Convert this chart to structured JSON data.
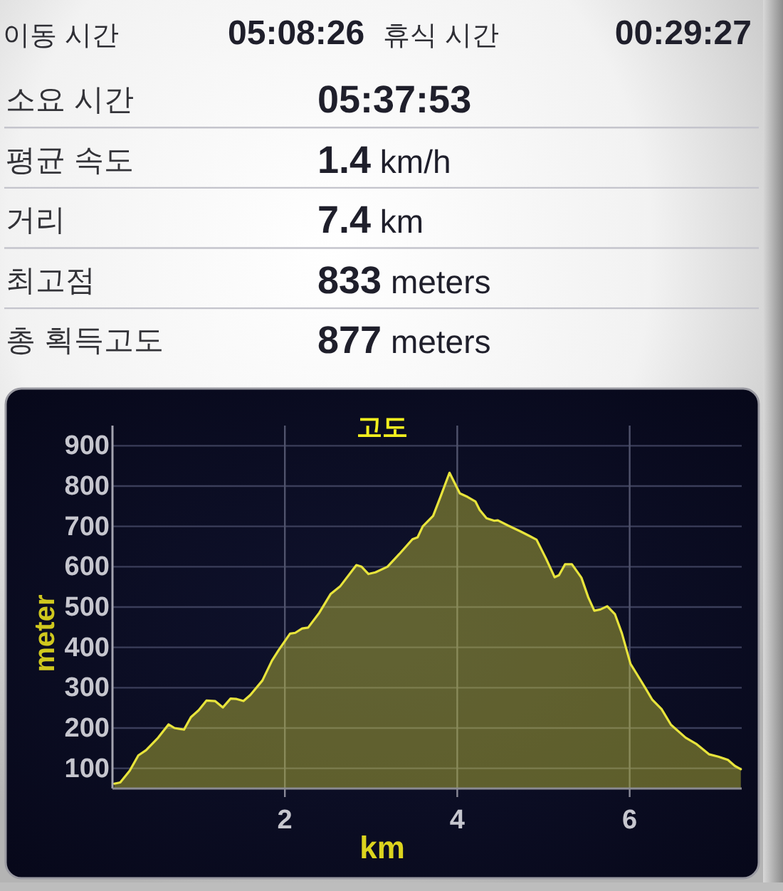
{
  "chart_data": [
    {
      "type": "other",
      "annotations": [
        "이동 시간",
        "05:08:26",
        "휴식 시간",
        "00:29:27",
        "소요 시간",
        "05:37:53",
        "평균 속도",
        "**1.4** km/h",
        "거리",
        "**7.4** km",
        "최고점",
        "**833** meters",
        "총 획득고도",
        "**877** meters"
      ]
    },
    {
      "type": "area",
      "title": "고도",
      "xlabel": "km",
      "ylabel": "meter",
      "color": "#e8e43c",
      "grid": true,
      "xlim": [
        0,
        7.3
      ],
      "ylim": [
        50,
        950
      ],
      "xticks": [
        2,
        4,
        6
      ],
      "yticks": [
        100,
        200,
        300,
        400,
        500,
        600,
        700,
        800,
        900
      ],
      "x": [
        0.02,
        0.09,
        0.2,
        0.3,
        0.39,
        0.53,
        0.65,
        0.72,
        0.83,
        0.91,
        1.0,
        1.09,
        1.19,
        1.28,
        1.37,
        1.44,
        1.52,
        1.6,
        1.74,
        1.85,
        1.93,
        2.06,
        2.12,
        2.2,
        2.27,
        2.4,
        2.53,
        2.64,
        2.83,
        2.89,
        2.97,
        3.05,
        3.19,
        3.33,
        3.48,
        3.54,
        3.6,
        3.72,
        3.81,
        3.91,
        4.03,
        4.12,
        4.21,
        4.26,
        4.34,
        4.43,
        4.47,
        4.59,
        4.73,
        4.84,
        4.92,
        5.03,
        5.13,
        5.18,
        5.25,
        5.33,
        5.44,
        5.52,
        5.59,
        5.66,
        5.74,
        5.83,
        5.91,
        6.01,
        6.08,
        6.18,
        6.26,
        6.37,
        6.48,
        6.65,
        6.77,
        6.92,
        7.03,
        7.14,
        7.22,
        7.29
      ],
      "values": [
        62,
        65,
        94,
        132,
        145,
        176,
        209,
        200,
        196,
        227,
        244,
        268,
        267,
        251,
        273,
        272,
        267,
        282,
        318,
        367,
        394,
        434,
        436,
        447,
        449,
        486,
        532,
        551,
        604,
        600,
        582,
        586,
        600,
        632,
        668,
        673,
        700,
        726,
        776,
        833,
        782,
        773,
        762,
        741,
        720,
        714,
        715,
        702,
        688,
        676,
        667,
        620,
        574,
        579,
        606,
        606,
        573,
        524,
        491,
        494,
        502,
        482,
        435,
        359,
        335,
        300,
        271,
        247,
        208,
        176,
        161,
        135,
        129,
        121,
        106,
        98
      ]
    }
  ]
}
